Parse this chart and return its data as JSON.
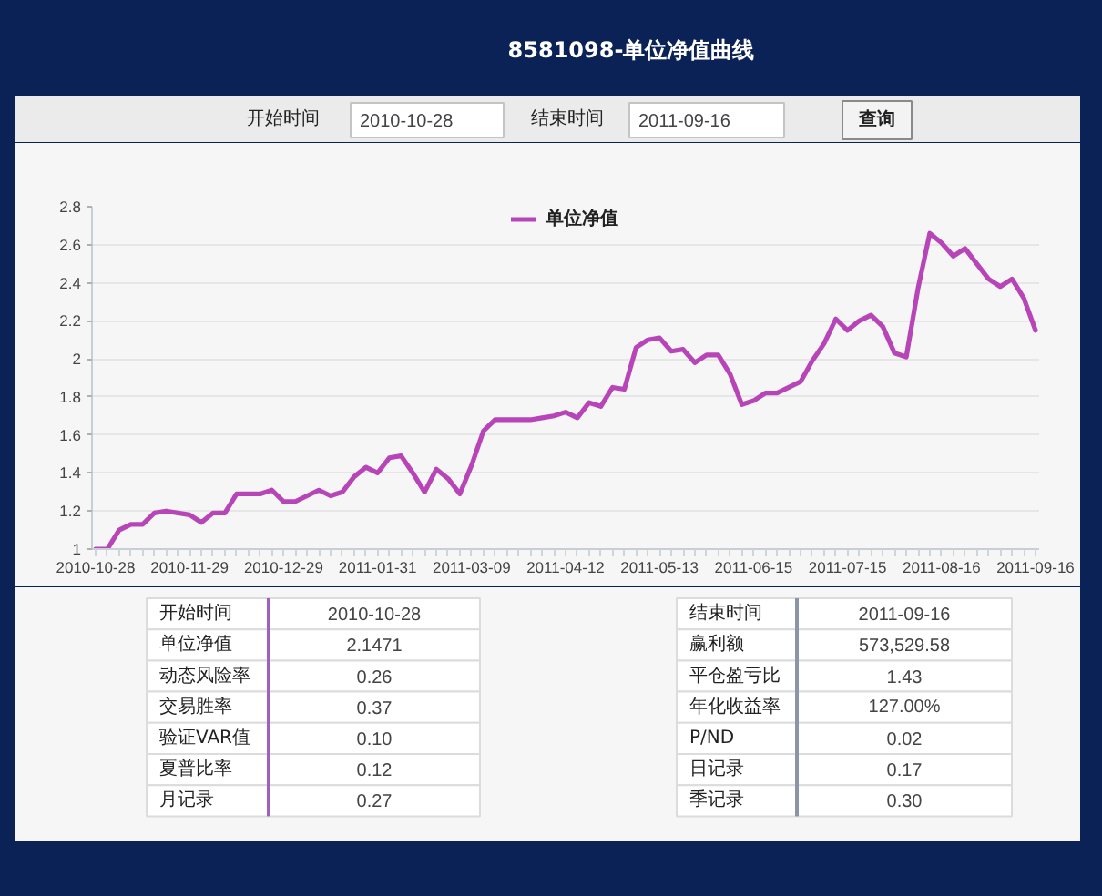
{
  "chart_data": {
    "type": "line",
    "title": "8581098-单位净值曲线",
    "categories": [
      "2010-10-28",
      null,
      null,
      null,
      null,
      null,
      null,
      null,
      "2010-11-29",
      null,
      null,
      null,
      null,
      null,
      null,
      null,
      "2010-12-29",
      null,
      null,
      null,
      null,
      null,
      null,
      null,
      "2011-01-31",
      null,
      null,
      null,
      null,
      null,
      null,
      null,
      "2011-03-09",
      null,
      null,
      null,
      null,
      null,
      null,
      null,
      "2011-04-12",
      null,
      null,
      null,
      null,
      null,
      null,
      null,
      "2011-05-13",
      null,
      null,
      null,
      null,
      null,
      null,
      null,
      "2011-06-15",
      null,
      null,
      null,
      null,
      null,
      null,
      null,
      "2011-07-15",
      null,
      null,
      null,
      null,
      null,
      null,
      null,
      "2011-08-16",
      null,
      null,
      null,
      null,
      null,
      null,
      null,
      "2011-09-16"
    ],
    "series": [
      {
        "name": "单位净值",
        "color": "#b845b8",
        "values": [
          1.0,
          1.0,
          1.1,
          1.13,
          1.13,
          1.19,
          1.2,
          1.19,
          1.18,
          1.14,
          1.19,
          1.19,
          1.29,
          1.29,
          1.29,
          1.31,
          1.25,
          1.25,
          1.28,
          1.31,
          1.28,
          1.3,
          1.38,
          1.43,
          1.4,
          1.48,
          1.49,
          1.4,
          1.3,
          1.42,
          1.37,
          1.29,
          1.44,
          1.62,
          1.68,
          1.68,
          1.68,
          1.68,
          1.69,
          1.7,
          1.72,
          1.69,
          1.77,
          1.75,
          1.85,
          1.84,
          2.06,
          2.1,
          2.11,
          2.04,
          2.05,
          1.98,
          2.02,
          2.02,
          1.92,
          1.76,
          1.78,
          1.82,
          1.82,
          1.85,
          1.88,
          1.99,
          2.08,
          2.21,
          2.15,
          2.2,
          2.23,
          2.17,
          2.03,
          2.01,
          2.37,
          2.66,
          2.61,
          2.54,
          2.58,
          2.5,
          2.42,
          2.38,
          2.42,
          2.32,
          2.15
        ]
      }
    ],
    "ylim": [
      1,
      2.8
    ],
    "yticks": [
      1,
      1.2,
      1.4,
      1.6,
      1.8,
      2,
      2.2,
      2.4,
      2.6,
      2.8
    ],
    "grid": "y",
    "legend": "top",
    "annotations": [
      "开始时间",
      "2010-10-28",
      "结束时间",
      "2011-09-16",
      "查询",
      "开始时间",
      "2010-10-28",
      "单位净值",
      "2.1471",
      "动态风险率",
      "0.26",
      "交易胜率",
      "0.37",
      "验证VAR值",
      "0.10",
      "夏普比率",
      "0.12",
      "月记录",
      "0.27",
      "结束时间",
      "2011-09-16",
      "赢利额",
      "573,529.58",
      "平仓盈亏比",
      "1.43",
      "年化收益率",
      "127.00%",
      "P/ND",
      "0.02",
      "日记录",
      "0.17",
      "季记录",
      "0.30"
    ]
  }
}
